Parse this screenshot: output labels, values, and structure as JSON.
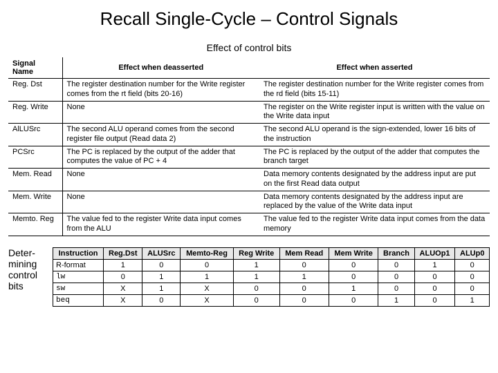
{
  "title": "Recall Single-Cycle – Control Signals",
  "subtitle": "Effect of control bits",
  "effects": {
    "headers": {
      "sig": "Signal Name",
      "de": "Effect when deasserted",
      "as": "Effect when asserted"
    },
    "rows": [
      {
        "sig": "Reg. Dst",
        "de": "The register destination number for the Write register comes from the rt field (bits 20-16)",
        "as": "The register destination number for the Write register comes from the rd field (bits 15-11)"
      },
      {
        "sig": "Reg. Write",
        "de": "None",
        "as": "The register on the Write register input is written with the value on the Write data input"
      },
      {
        "sig": "AlLUSrc",
        "de": "The second ALU operand comes from the second register file output (Read data 2)",
        "as": "The second ALU operand is the sign-extended, lower 16 bits of the instruction"
      },
      {
        "sig": "PCSrc",
        "de": "The PC is replaced by the output of the adder that computes the value of PC + 4",
        "as": "The PC is replaced by the output of the adder that computes the branch target"
      },
      {
        "sig": "Mem. Read",
        "de": "None",
        "as": "Data memory contents designated by the address input are put on the first Read data output"
      },
      {
        "sig": "Mem. Write",
        "de": "None",
        "as": "Data memory contents designated by the address input are replaced by the value of the Write data input"
      },
      {
        "sig": "Memto. Reg",
        "de": "The value fed to the register Write data input comes from the ALU",
        "as": "The value fed to the register Write data input comes from the data memory"
      }
    ]
  },
  "side_label": {
    "l1": "Deter-",
    "l2": "mining",
    "l3": "control",
    "l4": "bits"
  },
  "truth": {
    "headers": [
      "Instruction",
      "Reg.Dst",
      "ALUSrc",
      "Memto-Reg",
      "Reg Write",
      "Mem Read",
      "Mem Write",
      "Branch",
      "ALUOp1",
      "ALUp0"
    ],
    "rows": [
      [
        "R-format",
        "1",
        "0",
        "0",
        "1",
        "0",
        "0",
        "0",
        "1",
        "0"
      ],
      [
        "lw",
        "0",
        "1",
        "1",
        "1",
        "1",
        "0",
        "0",
        "0",
        "0"
      ],
      [
        "sw",
        "X",
        "1",
        "X",
        "0",
        "0",
        "1",
        "0",
        "0",
        "0"
      ],
      [
        "beq",
        "X",
        "0",
        "X",
        "0",
        "0",
        "0",
        "1",
        "0",
        "1"
      ]
    ]
  }
}
